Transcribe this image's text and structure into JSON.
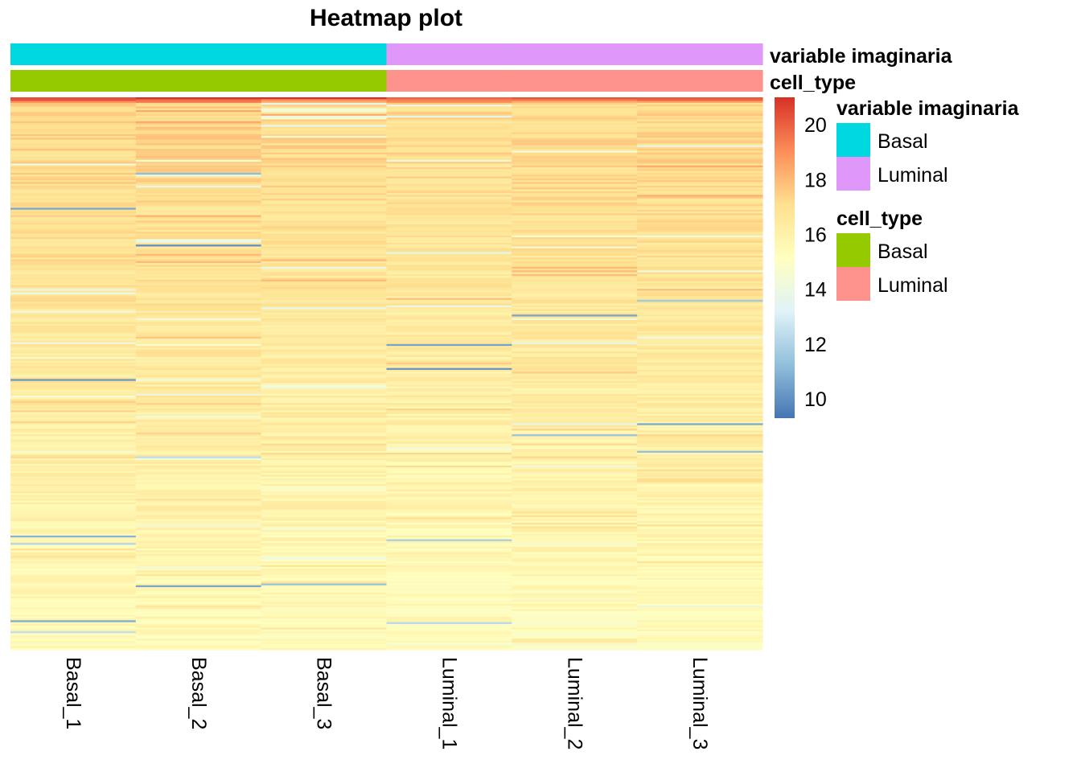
{
  "chart_data": {
    "type": "heatmap",
    "title": "Heatmap plot",
    "columns": [
      "Basal_1",
      "Basal_2",
      "Basal_3",
      "Luminal_1",
      "Luminal_2",
      "Luminal_3"
    ],
    "annotations": [
      {
        "name": "variable imaginaria",
        "values": [
          "Basal",
          "Basal",
          "Basal",
          "Luminal",
          "Luminal",
          "Luminal"
        ]
      },
      {
        "name": "cell_type",
        "values": [
          "Basal",
          "Basal",
          "Basal",
          "Luminal",
          "Luminal",
          "Luminal"
        ]
      }
    ],
    "color_scale": {
      "min": 9.3,
      "max": 21,
      "ticks": [
        10,
        12,
        14,
        16,
        18,
        20
      ],
      "colors": [
        "#4575b4",
        "#91bfdb",
        "#e0f3f8",
        "#ffffbf",
        "#fee090",
        "#fc8d59",
        "#d73027"
      ]
    },
    "row_count": 300,
    "value_profile": {
      "top": 20.5,
      "upper": 17.2,
      "middle": 16.2,
      "bottom": 15.3,
      "low_outlier": 10
    },
    "legend": [
      {
        "title": "variable imaginaria",
        "items": [
          {
            "label": "Basal",
            "color": "#00d8e0"
          },
          {
            "label": "Luminal",
            "color": "#df98fa"
          }
        ]
      },
      {
        "title": "cell_type",
        "items": [
          {
            "label": "Basal",
            "color": "#95c900"
          },
          {
            "label": "Luminal",
            "color": "#fc928b"
          }
        ]
      }
    ]
  }
}
